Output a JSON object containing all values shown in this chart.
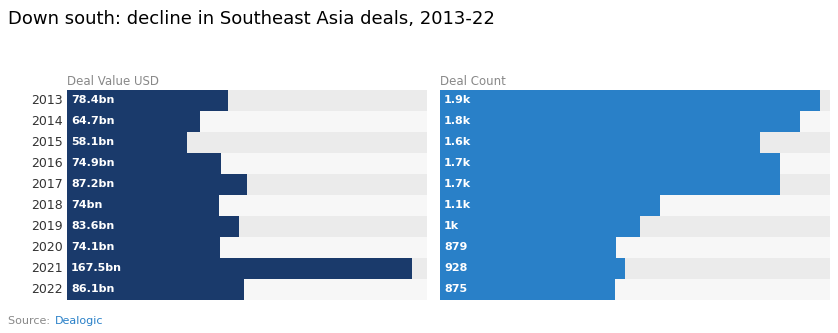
{
  "title": "Down south: decline in Southeast Asia deals, 2013-22",
  "years": [
    "2013",
    "2014",
    "2015",
    "2016",
    "2017",
    "2018",
    "2019",
    "2020",
    "2021",
    "2022"
  ],
  "deal_values": [
    78.4,
    64.7,
    58.1,
    74.9,
    87.2,
    74.0,
    83.6,
    74.1,
    167.5,
    86.1
  ],
  "deal_value_labels": [
    "78.4bn",
    "64.7bn",
    "58.1bn",
    "74.9bn",
    "87.2bn",
    "74bn",
    "83.6bn",
    "74.1bn",
    "167.5bn",
    "86.1bn"
  ],
  "deal_counts": [
    1900,
    1800,
    1600,
    1700,
    1700,
    1100,
    1000,
    879,
    928,
    875
  ],
  "deal_count_labels": [
    "1.9k",
    "1.8k",
    "1.6k",
    "1.7k",
    "1.7k",
    "1.1k",
    "1k",
    "879",
    "928",
    "875"
  ],
  "deal_value_max": 175,
  "deal_count_max": 1950,
  "left_header": "Deal Value USD",
  "right_header": "Deal Count",
  "bar_color_left": "#1a3a6b",
  "bar_color_right": "#2980c8",
  "row_bg_even": "#ebebeb",
  "row_bg_odd": "#f7f7f7",
  "source_text": "Source: ",
  "source_link": "Dealogic",
  "source_link_color": "#2980c8",
  "title_fontsize": 13,
  "label_fontsize": 8,
  "header_fontsize": 8.5,
  "year_fontsize": 9,
  "source_fontsize": 8,
  "background_color": "#ffffff"
}
